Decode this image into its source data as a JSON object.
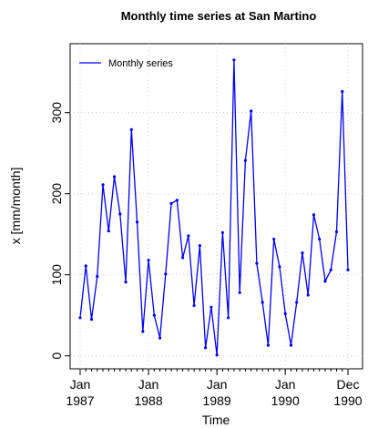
{
  "chart_data": {
    "type": "line",
    "title": "Monthly time series at San Martino",
    "y_label": "x [mm/month]",
    "x_label": "Time",
    "categories": [
      "Jan 1987",
      null,
      null,
      null,
      null,
      null,
      null,
      null,
      null,
      null,
      null,
      null,
      "Jan 1988",
      null,
      null,
      null,
      null,
      null,
      null,
      null,
      null,
      null,
      null,
      null,
      "Jan 1989",
      null,
      null,
      null,
      null,
      null,
      null,
      null,
      null,
      null,
      null,
      null,
      "Jan 1990",
      null,
      null,
      null,
      null,
      null,
      null,
      null,
      null,
      null,
      null,
      "Dec 1990"
    ],
    "series": [
      {
        "name": "Monthly series",
        "color": "#0000ff",
        "values": [
          47,
          111,
          45,
          98,
          211,
          154,
          221,
          175,
          91,
          279,
          165,
          30,
          118,
          50,
          22,
          101,
          188,
          192,
          121,
          148,
          62,
          136,
          10,
          60,
          1,
          152,
          47,
          365,
          78,
          241,
          302,
          114,
          66,
          13,
          144,
          110,
          52,
          13,
          66,
          127,
          75,
          174,
          144,
          92,
          106,
          153,
          326,
          106
        ]
      }
    ],
    "ylim": [
      -16,
      385
    ],
    "yticks": [
      0,
      100,
      200,
      300
    ],
    "grid": true,
    "legend": "top-left"
  }
}
